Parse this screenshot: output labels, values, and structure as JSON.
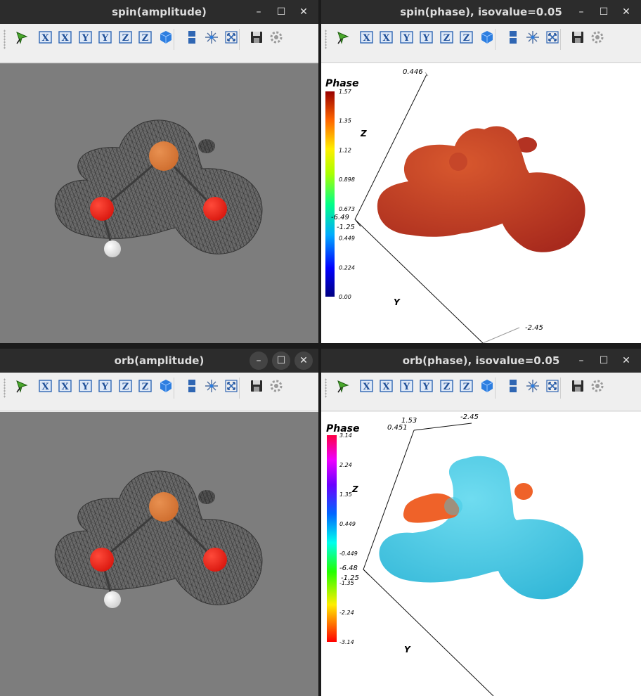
{
  "windows": [
    {
      "title": "spin(amplitude)"
    },
    {
      "title": "spin(phase), isovalue=0.05",
      "colorbar": {
        "title": "Phase",
        "ticks": [
          "1.57",
          "1.35",
          "1.12",
          "0.898",
          "0.673",
          "0.449",
          "0.224",
          "0.00"
        ]
      },
      "axes": {
        "z_label": "Z",
        "y_label": "Y",
        "top_value": "0.446",
        "left_value_a": "-6.49",
        "left_value_b": "-1.25",
        "bottom_value": "-2.45"
      }
    },
    {
      "title": "orb(amplitude)"
    },
    {
      "title": "orb(phase), isovalue=0.05",
      "colorbar": {
        "title": "Phase",
        "ticks": [
          "3.14",
          "2.24",
          "1.35",
          "0.449",
          "-0.449",
          "-1.35",
          "-2.24",
          "-3.14"
        ]
      },
      "axes": {
        "z_label": "Z",
        "y_label": "Y",
        "top_value_a": "1.53",
        "top_value_b": "0.451",
        "top_value_c": "-2.45",
        "left_value_a": "-6.48",
        "left_value_b": "-1.25"
      }
    }
  ],
  "controls": {
    "minimize": "–",
    "maximize": "☐",
    "close": "✕"
  },
  "toolbar_icons": [
    "select-icon",
    "view-x-icon",
    "view-neg-x-icon",
    "view-y-icon",
    "view-neg-y-icon",
    "view-z-icon",
    "view-neg-z-icon",
    "isometric-view-icon",
    "split-view-icon",
    "axes-icon",
    "fit-view-icon",
    "save-icon",
    "settings-icon"
  ],
  "toolbar_glyphs": {
    "x": "X",
    "y": "Y",
    "z": "Z"
  },
  "colors": {
    "spin_surface": "#b33222",
    "orb_surface": "#3fc8e2",
    "orb_lobe": "#ef6229",
    "atom_red": "#d9180f",
    "atom_orange": "#cf6e2f",
    "viewport_gray": "#7d7d7d"
  }
}
